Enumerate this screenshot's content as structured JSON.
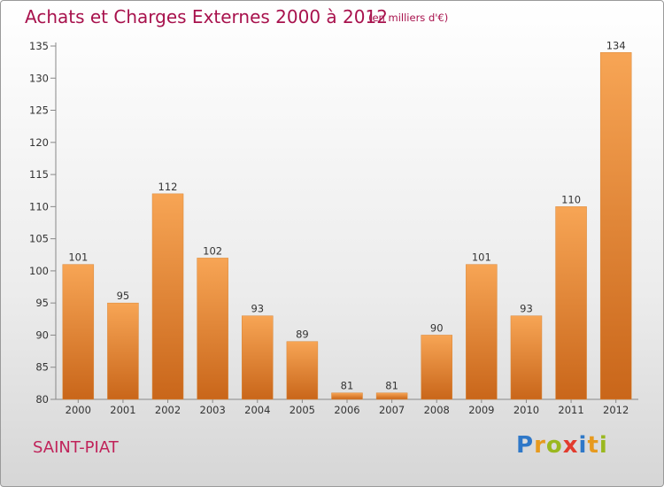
{
  "header": {
    "title": "Achats et Charges Externes 2000 à 2012",
    "subtitle": "(en milliers d'€)"
  },
  "footer": {
    "town": "SAINT-PIAT",
    "logo_letters": [
      {
        "ch": "P",
        "color": "#2f78c8"
      },
      {
        "ch": "r",
        "color": "#e79a1e"
      },
      {
        "ch": "o",
        "color": "#9ab81f"
      },
      {
        "ch": "x",
        "color": "#e23b2e"
      },
      {
        "ch": "i",
        "color": "#2f78c8"
      },
      {
        "ch": "t",
        "color": "#e79a1e"
      },
      {
        "ch": "i",
        "color": "#9ab81f"
      }
    ]
  },
  "chart_data": {
    "type": "bar",
    "title": "Achats et Charges Externes 2000 à 2012",
    "subtitle": "(en milliers d'€)",
    "categories": [
      "2000",
      "2001",
      "2002",
      "2003",
      "2004",
      "2005",
      "2006",
      "2007",
      "2008",
      "2009",
      "2010",
      "2011",
      "2012"
    ],
    "values": [
      101,
      95,
      112,
      102,
      93,
      89,
      81,
      81,
      90,
      101,
      93,
      110,
      134
    ],
    "ylim": [
      80,
      135
    ],
    "yticks": [
      80,
      85,
      90,
      95,
      100,
      105,
      110,
      115,
      120,
      125,
      130,
      135
    ],
    "xlabel": "",
    "ylabel": "",
    "grid": false,
    "bar_color": "#e8852a",
    "label_color": "#333333"
  }
}
